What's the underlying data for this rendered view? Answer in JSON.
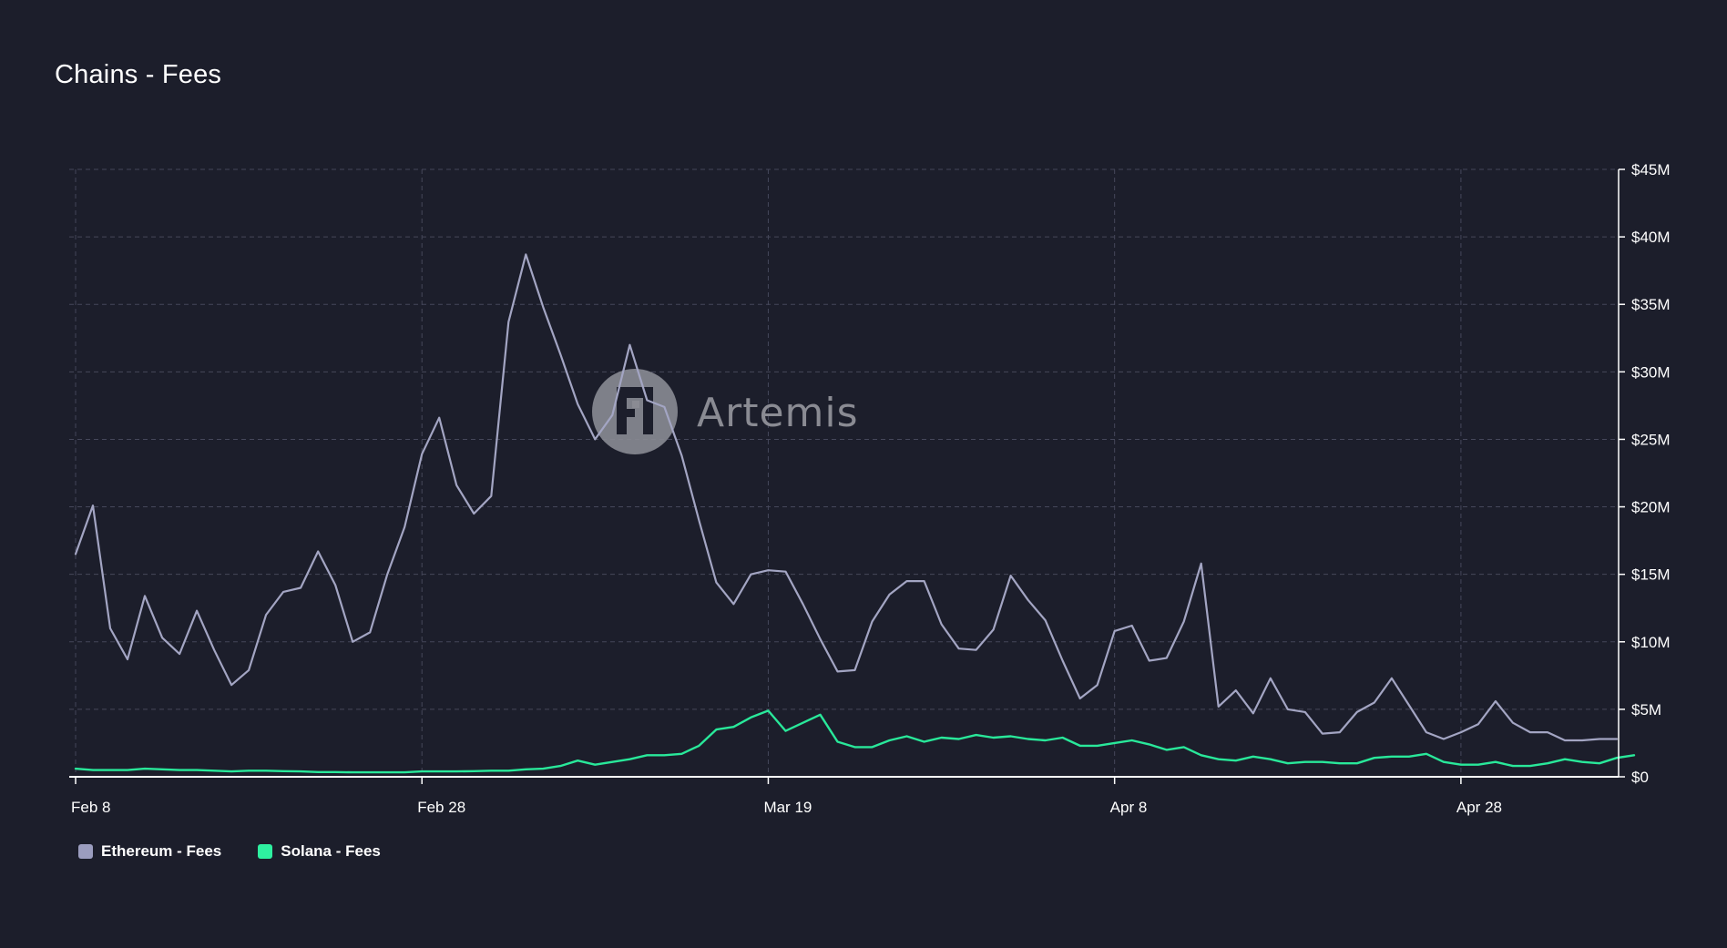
{
  "page": {
    "title": "Chains - Fees",
    "watermark": "Artemis"
  },
  "colors": {
    "background": "#1c1e2b",
    "grid": "#45475a",
    "axis": "#ffffff",
    "ethereum": "#a3a5c3",
    "solana": "#29e89a"
  },
  "icons": {
    "watermark_logo": "artemis-logo-icon"
  },
  "legend": [
    {
      "label": "Ethereum - Fees",
      "color": "#9b9dbf"
    },
    {
      "label": "Solana - Fees",
      "color": "#2ef0a0"
    }
  ],
  "chart_data": {
    "type": "line",
    "title": "Chains - Fees",
    "xlabel": "",
    "ylabel": "",
    "x_start": "Feb 8",
    "x_ticks": [
      {
        "label": "Feb 8",
        "day": 0
      },
      {
        "label": "Feb 28",
        "day": 20
      },
      {
        "label": "Mar 19",
        "day": 40
      },
      {
        "label": "Apr 8",
        "day": 60
      },
      {
        "label": "Apr 28",
        "day": 80
      }
    ],
    "y_ticks": [
      "$0",
      "$5M",
      "$10M",
      "$15M",
      "$20M",
      "$25M",
      "$30M",
      "$35M",
      "$40M",
      "$45M"
    ],
    "ylim": [
      0,
      45
    ],
    "y_unit": "$M",
    "y_axis_side": "right",
    "grid": true,
    "legend_position": "bottom-left",
    "series": [
      {
        "name": "Ethereum - Fees",
        "color": "#a3a5c3",
        "values": [
          16.5,
          20.1,
          11.0,
          8.7,
          13.4,
          10.3,
          9.1,
          12.3,
          9.4,
          6.8,
          7.9,
          12.0,
          13.7,
          14.0,
          16.7,
          14.2,
          10.0,
          10.7,
          15.0,
          18.5,
          23.9,
          26.6,
          21.6,
          19.5,
          20.8,
          33.7,
          38.7,
          34.8,
          31.3,
          27.6,
          25.0,
          26.8,
          32.0,
          27.9,
          27.4,
          23.8,
          19.0,
          14.4,
          12.8,
          15.0,
          15.3,
          15.2,
          12.8,
          10.2,
          7.8,
          7.9,
          11.5,
          13.5,
          14.5,
          14.5,
          11.3,
          9.5,
          9.4,
          10.9,
          14.9,
          13.1,
          11.6,
          8.6,
          5.8,
          6.8,
          10.8,
          11.2,
          8.6,
          8.8,
          11.5,
          15.8,
          5.2,
          6.4,
          4.7,
          7.3,
          5.0,
          4.8,
          3.2,
          3.3,
          4.8,
          5.5,
          7.3,
          5.3,
          3.3,
          2.8,
          3.3,
          3.9,
          5.6,
          4.0,
          3.3,
          3.3,
          2.7,
          2.7,
          2.8,
          2.8
        ]
      },
      {
        "name": "Solana - Fees",
        "color": "#29e89a",
        "values": [
          0.6,
          0.5,
          0.5,
          0.5,
          0.6,
          0.55,
          0.5,
          0.5,
          0.45,
          0.4,
          0.45,
          0.45,
          0.42,
          0.4,
          0.35,
          0.35,
          0.33,
          0.33,
          0.33,
          0.33,
          0.4,
          0.4,
          0.4,
          0.42,
          0.45,
          0.45,
          0.55,
          0.6,
          0.8,
          1.2,
          0.9,
          1.1,
          1.3,
          1.6,
          1.6,
          1.7,
          2.3,
          3.5,
          3.7,
          4.4,
          4.9,
          3.4,
          4.0,
          4.6,
          2.6,
          2.2,
          2.2,
          2.7,
          3.0,
          2.6,
          2.9,
          2.8,
          3.1,
          2.9,
          3.0,
          2.8,
          2.7,
          2.9,
          2.3,
          2.3,
          2.5,
          2.7,
          2.4,
          2.0,
          2.2,
          1.6,
          1.3,
          1.2,
          1.5,
          1.3,
          1.0,
          1.1,
          1.1,
          1.0,
          1.0,
          1.4,
          1.5,
          1.5,
          1.7,
          1.1,
          0.9,
          0.9,
          1.1,
          0.8,
          0.8,
          1.0,
          1.3,
          1.1,
          1.0,
          1.4,
          1.6
        ]
      }
    ]
  }
}
